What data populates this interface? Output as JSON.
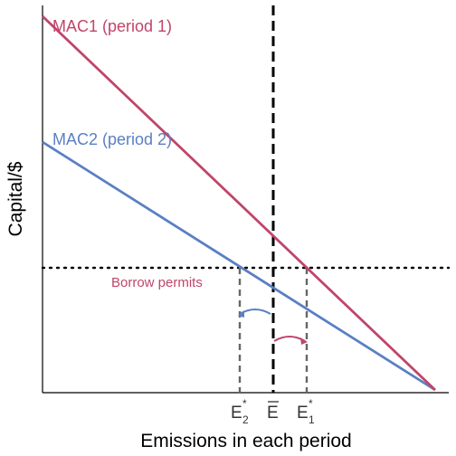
{
  "axes": {
    "xlabel": "Emissions in each period",
    "ylabel": "Capital/$"
  },
  "curves": {
    "mac1_label": "MAC1 (period 1)",
    "mac2_label": "MAC2 (period 2)"
  },
  "annotation": {
    "borrow": "Borrow permits"
  },
  "ticks": {
    "e2_base": "E",
    "e2_sup": "*",
    "e2_sub": "2",
    "ebar": "E",
    "e1_base": "E",
    "e1_sup": "*",
    "e1_sub": "1"
  },
  "colors": {
    "mac1": "#c0456a",
    "mac2": "#5a7fc4",
    "guide": "#666666",
    "black": "#000000"
  }
}
